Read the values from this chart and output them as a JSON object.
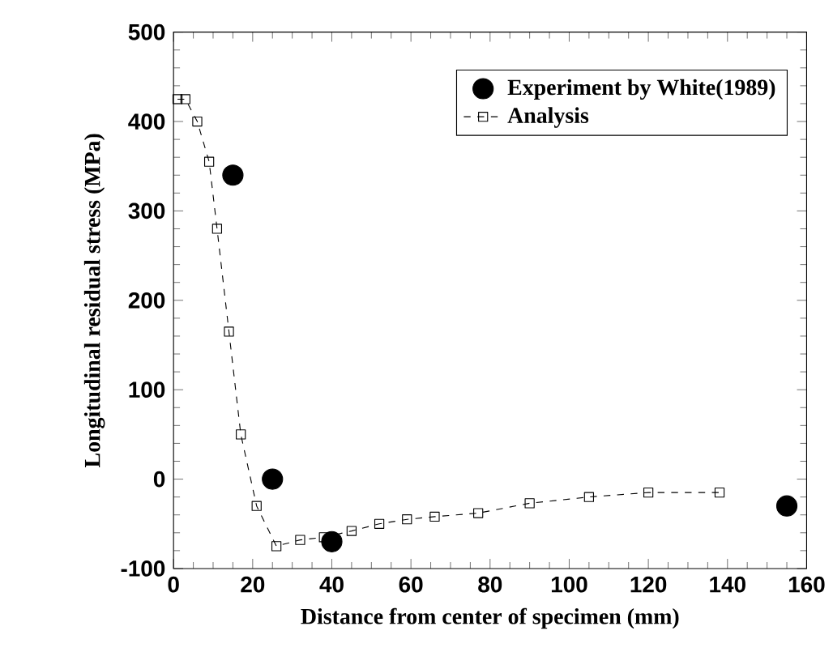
{
  "chart_data": {
    "type": "line",
    "xlabel": "Distance from center of specimen (mm)",
    "ylabel": "Longitudinal residual stress (MPa)",
    "xlim": [
      0,
      160
    ],
    "ylim": [
      -100,
      500
    ],
    "xticks": [
      0,
      20,
      40,
      60,
      80,
      100,
      120,
      140,
      160
    ],
    "yticks": [
      -100,
      0,
      100,
      200,
      300,
      400,
      500
    ],
    "legend": "top right",
    "series": [
      {
        "name": "Experiment by White(1989)",
        "type": "scatter",
        "color": "#000000",
        "marker": "circle",
        "x": [
          15,
          25,
          40,
          155
        ],
        "values": [
          340,
          0,
          -70,
          -30
        ]
      },
      {
        "name": "Analysis",
        "color": "#000000",
        "marker": "square",
        "line_style": "dashed",
        "x": [
          1,
          3,
          6,
          9,
          11,
          14,
          17,
          21,
          26,
          32,
          38,
          45,
          52,
          59,
          66,
          77,
          90,
          105,
          120,
          138
        ],
        "values": [
          425,
          425,
          400,
          355,
          280,
          165,
          50,
          -30,
          -75,
          -68,
          -65,
          -58,
          -50,
          -45,
          -42,
          -38,
          -27,
          -20,
          -15,
          -15
        ]
      }
    ]
  }
}
